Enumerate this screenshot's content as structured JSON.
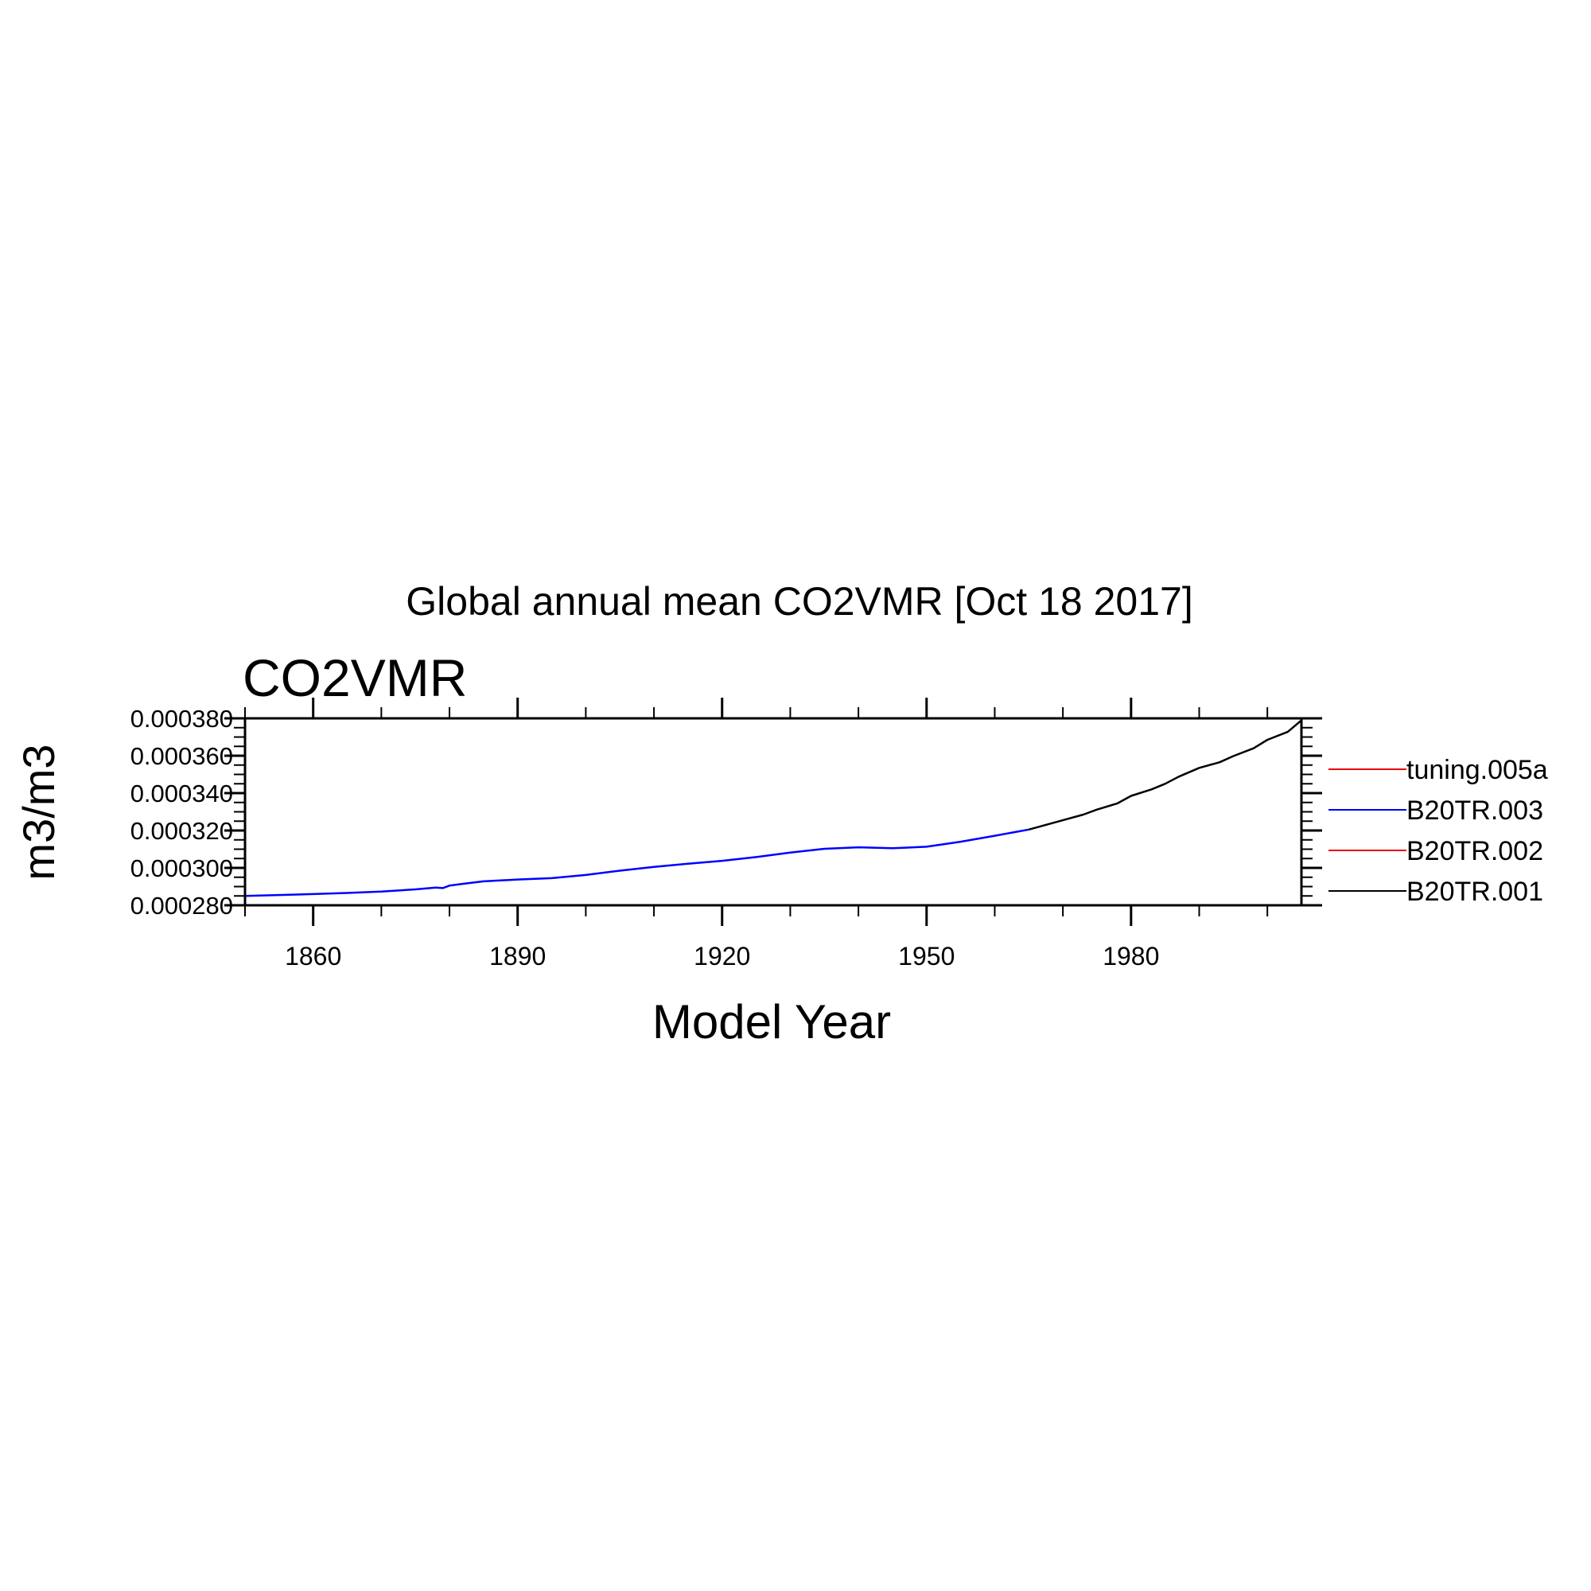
{
  "chart_data": {
    "type": "line",
    "title": "Global annual mean CO2VMR [Oct 18 2017]",
    "subtitle": "CO2VMR",
    "xlabel": "Model Year",
    "ylabel": "m3/m3",
    "xlim": [
      1850,
      2005
    ],
    "ylim": [
      0.00028,
      0.00038
    ],
    "x_ticks": [
      1860,
      1890,
      1920,
      1950,
      1980
    ],
    "x_tick_labels": [
      "1860",
      "1890",
      "1920",
      "1950",
      "1980"
    ],
    "y_ticks": [
      0.00028,
      0.0003,
      0.00032,
      0.00034,
      0.00036,
      0.00038
    ],
    "y_tick_labels": [
      "0.000280",
      "0.000300",
      "0.000320",
      "0.000340",
      "0.000360",
      "0.000380"
    ],
    "grid": false,
    "legend_position": "right",
    "series": [
      {
        "name": "tuning.005a",
        "color": "#e8000b",
        "x": [],
        "values": []
      },
      {
        "name": "B20TR.003",
        "color": "#0000ff",
        "x": [
          1850,
          1855,
          1860,
          1865,
          1870,
          1875,
          1878,
          1879,
          1880,
          1882,
          1885,
          1890,
          1895,
          1900,
          1905,
          1910,
          1915,
          1920,
          1925,
          1930,
          1935,
          1940,
          1945,
          1950,
          1955,
          1960,
          1965
        ],
        "values": [
          0.000285,
          0.0002855,
          0.000286,
          0.0002866,
          0.0002873,
          0.0002885,
          0.0002895,
          0.0002892,
          0.0002905,
          0.0002915,
          0.0002928,
          0.0002938,
          0.0002945,
          0.0002962,
          0.0002985,
          0.0003005,
          0.0003022,
          0.0003038,
          0.0003058,
          0.0003082,
          0.0003102,
          0.000311,
          0.0003105,
          0.0003113,
          0.000314,
          0.0003172,
          0.0003205
        ]
      },
      {
        "name": "B20TR.002",
        "color": "#e8000b",
        "x": [],
        "values": []
      },
      {
        "name": "B20TR.001",
        "color": "#000000",
        "x": [
          1965,
          1970,
          1973,
          1975,
          1978,
          1980,
          1983,
          1985,
          1987,
          1990,
          1993,
          1995,
          1998,
          2000,
          2003,
          2005
        ],
        "values": [
          0.0003205,
          0.0003255,
          0.0003285,
          0.0003312,
          0.0003345,
          0.0003385,
          0.000342,
          0.000345,
          0.0003488,
          0.0003535,
          0.0003565,
          0.0003598,
          0.000364,
          0.0003685,
          0.0003728,
          0.000379
        ]
      }
    ]
  }
}
